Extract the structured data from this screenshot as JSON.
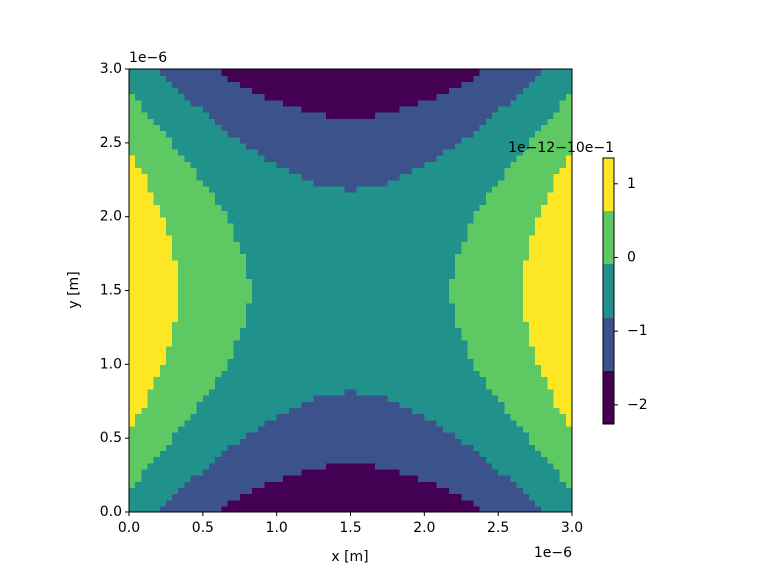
{
  "chart_data": {
    "type": "contour",
    "x_label": "x [m]",
    "y_label": "y [m]",
    "x_offset": "1e−6",
    "y_offset": "1e−6",
    "colorbar_offset": "1e−12−10e−1",
    "xlim": [
      0,
      3
    ],
    "ylim": [
      0,
      3
    ],
    "xticks": [
      {
        "value": 0,
        "label": "0.0"
      },
      0.5,
      {
        "value": 1,
        "label": "1.0"
      },
      1.5,
      {
        "value": 2,
        "label": "2.0"
      },
      2.5,
      {
        "value": 3,
        "label": "3.0"
      }
    ],
    "yticks": [
      {
        "value": 0,
        "label": "0.0"
      },
      0.5,
      {
        "value": 1,
        "label": "1.0"
      },
      1.5,
      {
        "value": 2,
        "label": "2.0"
      },
      2.5,
      {
        "value": 3,
        "label": "3.0"
      }
    ],
    "x": [
      0,
      0.25,
      0.5,
      0.75,
      1,
      1.25,
      1.5,
      1.75,
      2,
      2.25,
      2.5,
      2.75,
      3
    ],
    "y": [
      0,
      0.25,
      0.5,
      0.75,
      1,
      1.25,
      1.5,
      1.75,
      2,
      2.25,
      2.5,
      2.75,
      3
    ],
    "z": [
      [
        -0.45,
        -1.0,
        -1.44,
        -1.79,
        -2.03,
        -2.18,
        -2.23,
        -2.18,
        -2.03,
        -1.79,
        -1.44,
        -1.0,
        -0.45
      ],
      [
        0.1,
        -0.45,
        -0.89,
        -1.24,
        -1.48,
        -1.63,
        -1.68,
        -1.63,
        -1.48,
        -1.24,
        -0.89,
        -0.45,
        0.1
      ],
      [
        0.54,
        -0.01,
        -0.45,
        -0.8,
        -1.04,
        -1.19,
        -1.24,
        -1.19,
        -1.04,
        -0.8,
        -0.45,
        -0.01,
        0.54
      ],
      [
        0.89,
        0.34,
        -0.1,
        -0.45,
        -0.69,
        -0.84,
        -0.89,
        -0.84,
        -0.69,
        -0.45,
        -0.1,
        0.34,
        0.89
      ],
      [
        1.13,
        0.58,
        0.14,
        -0.21,
        -0.45,
        -0.6,
        -0.65,
        -0.6,
        -0.45,
        -0.21,
        0.14,
        0.58,
        1.13
      ],
      [
        1.28,
        0.73,
        0.29,
        -0.06,
        -0.3,
        -0.45,
        -0.5,
        -0.45,
        -0.3,
        -0.06,
        0.29,
        0.73,
        1.28
      ],
      [
        1.33,
        0.78,
        0.34,
        -0.01,
        -0.25,
        -0.4,
        -0.45,
        -0.4,
        -0.25,
        -0.01,
        0.34,
        0.78,
        1.33
      ],
      [
        1.28,
        0.73,
        0.29,
        -0.06,
        -0.3,
        -0.45,
        -0.5,
        -0.45,
        -0.3,
        -0.06,
        0.29,
        0.73,
        1.28
      ],
      [
        1.13,
        0.58,
        0.14,
        -0.21,
        -0.45,
        -0.6,
        -0.65,
        -0.6,
        -0.45,
        -0.21,
        0.14,
        0.58,
        1.13
      ],
      [
        0.89,
        0.34,
        -0.1,
        -0.45,
        -0.69,
        -0.84,
        -0.89,
        -0.84,
        -0.69,
        -0.45,
        -0.1,
        0.34,
        0.89
      ],
      [
        0.54,
        -0.01,
        -0.45,
        -0.8,
        -1.04,
        -1.19,
        -1.24,
        -1.19,
        -1.04,
        -0.8,
        -0.45,
        -0.01,
        0.54
      ],
      [
        0.1,
        -0.45,
        -0.89,
        -1.24,
        -1.48,
        -1.63,
        -1.68,
        -1.63,
        -1.48,
        -1.24,
        -0.89,
        -0.45,
        0.1
      ],
      [
        -0.45,
        -1.0,
        -1.44,
        -1.79,
        -2.03,
        -2.18,
        -2.23,
        -2.18,
        -2.03,
        -1.79,
        -1.44,
        -1.0,
        -0.45
      ]
    ],
    "levels": [
      -2.26,
      -1.54,
      -0.82,
      -0.09,
      0.63,
      1.35
    ],
    "colors": [
      "#440154",
      "#3b528b",
      "#21918c",
      "#5ec962",
      "#fde725"
    ],
    "colorbar_ticks": [
      {
        "value": -2,
        "label": "−2"
      },
      {
        "value": -1,
        "label": "−1"
      },
      0,
      1
    ]
  }
}
